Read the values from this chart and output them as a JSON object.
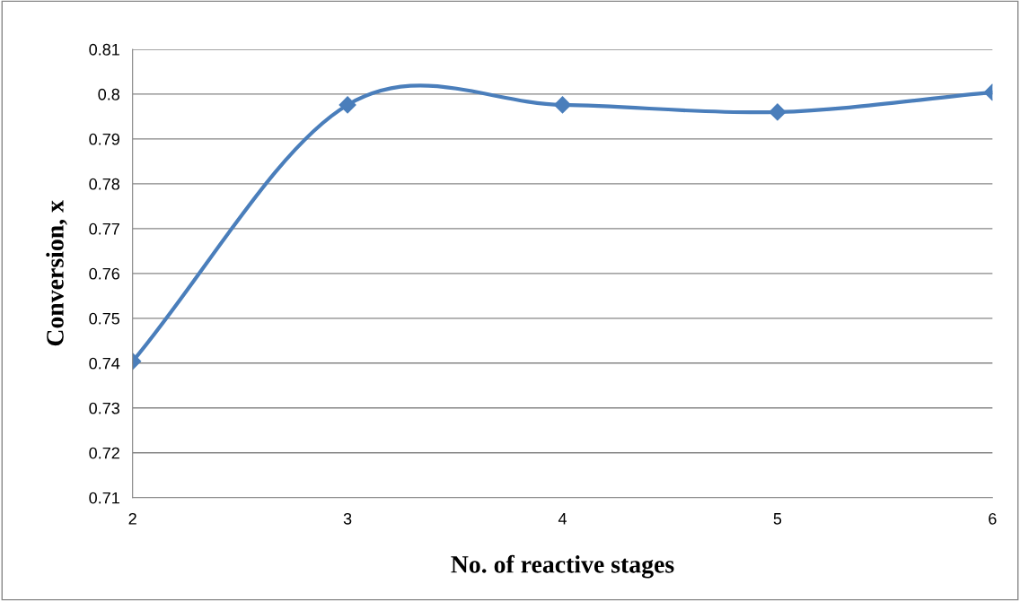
{
  "chart_data": {
    "type": "line",
    "xlabel": "No. of reactive stages",
    "ylabel": "Conversion, x",
    "x": [
      2,
      3,
      4,
      5,
      6
    ],
    "series": [
      {
        "color": "#4a7ebb",
        "values": [
          0.7404,
          0.7976,
          0.7976,
          0.796,
          0.8004
        ]
      }
    ],
    "xlim": [
      2,
      6
    ],
    "xticks": [
      2,
      3,
      4,
      5,
      6
    ],
    "ylim": [
      0.71,
      0.81
    ],
    "yticks": [
      0.71,
      0.72,
      0.73,
      0.74,
      0.75,
      0.76,
      0.77,
      0.78,
      0.79,
      0.8,
      0.81
    ],
    "grid": "y",
    "marker": "diamond",
    "line_style": "solid"
  }
}
